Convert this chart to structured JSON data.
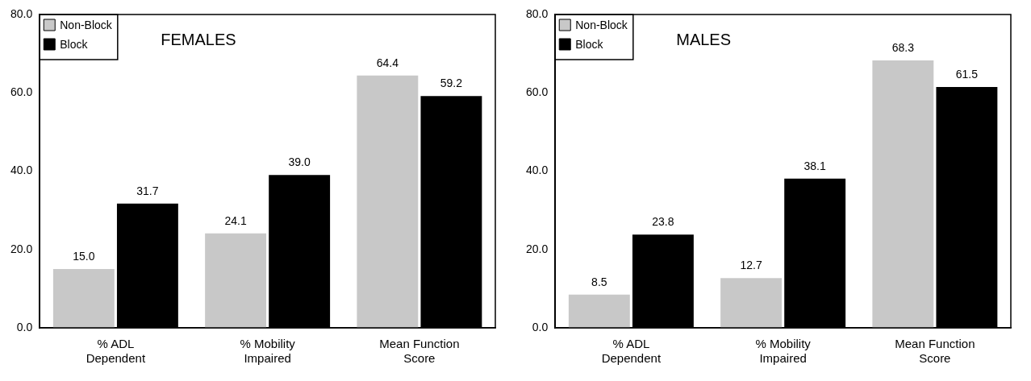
{
  "chart_data": [
    {
      "type": "bar",
      "title": "FEMALES",
      "categories": [
        "% ADL Dependent",
        "% Mobility Impaired",
        "Mean Function Score"
      ],
      "series": [
        {
          "name": "Non-Block",
          "color": "#c8c8c8",
          "values": [
            15.0,
            24.1,
            64.4
          ],
          "value_labels": [
            "15.0",
            "24.1",
            "64.4"
          ]
        },
        {
          "name": "Block",
          "color": "#000000",
          "values": [
            31.7,
            39.0,
            59.2
          ],
          "value_labels": [
            "31.7",
            "39.0",
            "59.2"
          ]
        }
      ],
      "ylim": [
        0,
        80
      ],
      "yticks": [
        {
          "value": 0,
          "label": "0.0"
        },
        {
          "value": 20,
          "label": "20.0"
        },
        {
          "value": 40,
          "label": "40.0"
        },
        {
          "value": 60,
          "label": "60.0"
        },
        {
          "value": 80,
          "label": "80.0"
        }
      ],
      "grid": false,
      "legend": "top left"
    },
    {
      "type": "bar",
      "title": "MALES",
      "categories": [
        "% ADL Dependent",
        "% Mobility Impaired",
        "Mean Function Score"
      ],
      "series": [
        {
          "name": "Non-Block",
          "color": "#c8c8c8",
          "values": [
            8.5,
            12.7,
            68.3
          ],
          "value_labels": [
            "8.5",
            "12.7",
            "68.3"
          ]
        },
        {
          "name": "Block",
          "color": "#000000",
          "values": [
            23.8,
            38.1,
            61.5
          ],
          "value_labels": [
            "23.8",
            "38.1",
            "61.5"
          ]
        }
      ],
      "ylim": [
        0,
        80
      ],
      "yticks": [
        {
          "value": 0,
          "label": "0.0"
        },
        {
          "value": 20,
          "label": "20.0"
        },
        {
          "value": 40,
          "label": "40.0"
        },
        {
          "value": 60,
          "label": "60.0"
        },
        {
          "value": 80,
          "label": "80.0"
        }
      ],
      "grid": false,
      "legend": "top left"
    }
  ]
}
